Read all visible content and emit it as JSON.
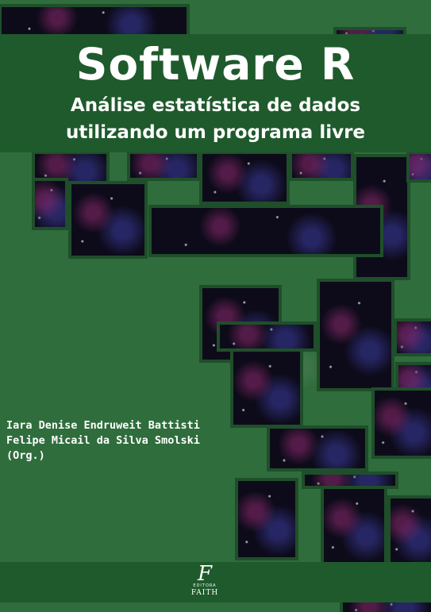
{
  "book": {
    "title": "Software R",
    "subtitle_line1": "Análise estatística de dados",
    "subtitle_line2": "utilizando um programa livre",
    "authors": [
      "Iara Denise Endruweit Battisti",
      "Felipe Micail da Silva Smolski",
      "(Org.)"
    ]
  },
  "publisher": {
    "mark": "F",
    "label": "EDITORA",
    "name": "FAITH"
  },
  "colors": {
    "background": "#2f6d3c",
    "band": "#1f5a2c",
    "text": "#ffffff"
  }
}
